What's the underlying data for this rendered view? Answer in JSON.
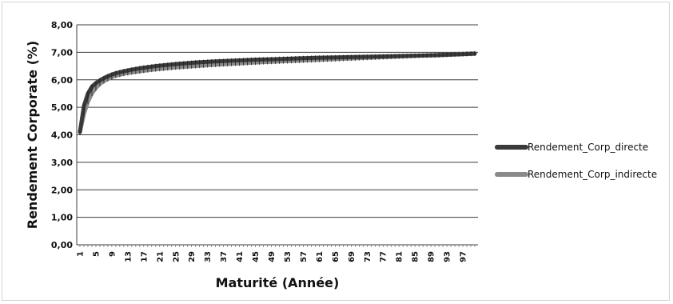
{
  "chart_data": {
    "type": "line",
    "xlabel": "Maturité (Année)",
    "ylabel": "Rendement Corporate (%)",
    "ylim": [
      0,
      8
    ],
    "y_ticks": [
      "0,00",
      "1,00",
      "2,00",
      "3,00",
      "4,00",
      "5,00",
      "6,00",
      "7,00",
      "8,00"
    ],
    "x_range": [
      1,
      100
    ],
    "x_tick_labels": [
      "1",
      "5",
      "9",
      "13",
      "17",
      "21",
      "25",
      "29",
      "33",
      "37",
      "41",
      "45",
      "49",
      "53",
      "57",
      "61",
      "65",
      "69",
      "73",
      "77",
      "81",
      "85",
      "89",
      "93",
      "97"
    ],
    "grid": true,
    "legend_position": "right",
    "series": [
      {
        "name": "Rendement_Corp_directe",
        "color": "#3a3a3a",
        "x": [
          1,
          2,
          3,
          4,
          5,
          6,
          7,
          8,
          9,
          10,
          12,
          14,
          16,
          18,
          20,
          25,
          30,
          35,
          40,
          45,
          50,
          60,
          70,
          80,
          90,
          100
        ],
        "values": [
          4.1,
          5.05,
          5.5,
          5.75,
          5.88,
          5.98,
          6.06,
          6.13,
          6.19,
          6.24,
          6.31,
          6.37,
          6.42,
          6.46,
          6.5,
          6.57,
          6.63,
          6.67,
          6.7,
          6.73,
          6.75,
          6.8,
          6.83,
          6.86,
          6.89,
          6.95
        ]
      },
      {
        "name": "Rendement_Corp_indirecte",
        "color": "#8a8a8a",
        "x": [
          1,
          2,
          3,
          4,
          5,
          6,
          7,
          8,
          9,
          10,
          12,
          14,
          16,
          18,
          20,
          25,
          30,
          35,
          40,
          45,
          50,
          60,
          70,
          80,
          90,
          100
        ],
        "values": [
          4.1,
          4.75,
          5.2,
          5.5,
          5.7,
          5.85,
          5.95,
          6.03,
          6.1,
          6.15,
          6.22,
          6.27,
          6.31,
          6.35,
          6.38,
          6.45,
          6.5,
          6.55,
          6.59,
          6.63,
          6.66,
          6.72,
          6.78,
          6.84,
          6.9,
          6.96
        ]
      }
    ]
  }
}
